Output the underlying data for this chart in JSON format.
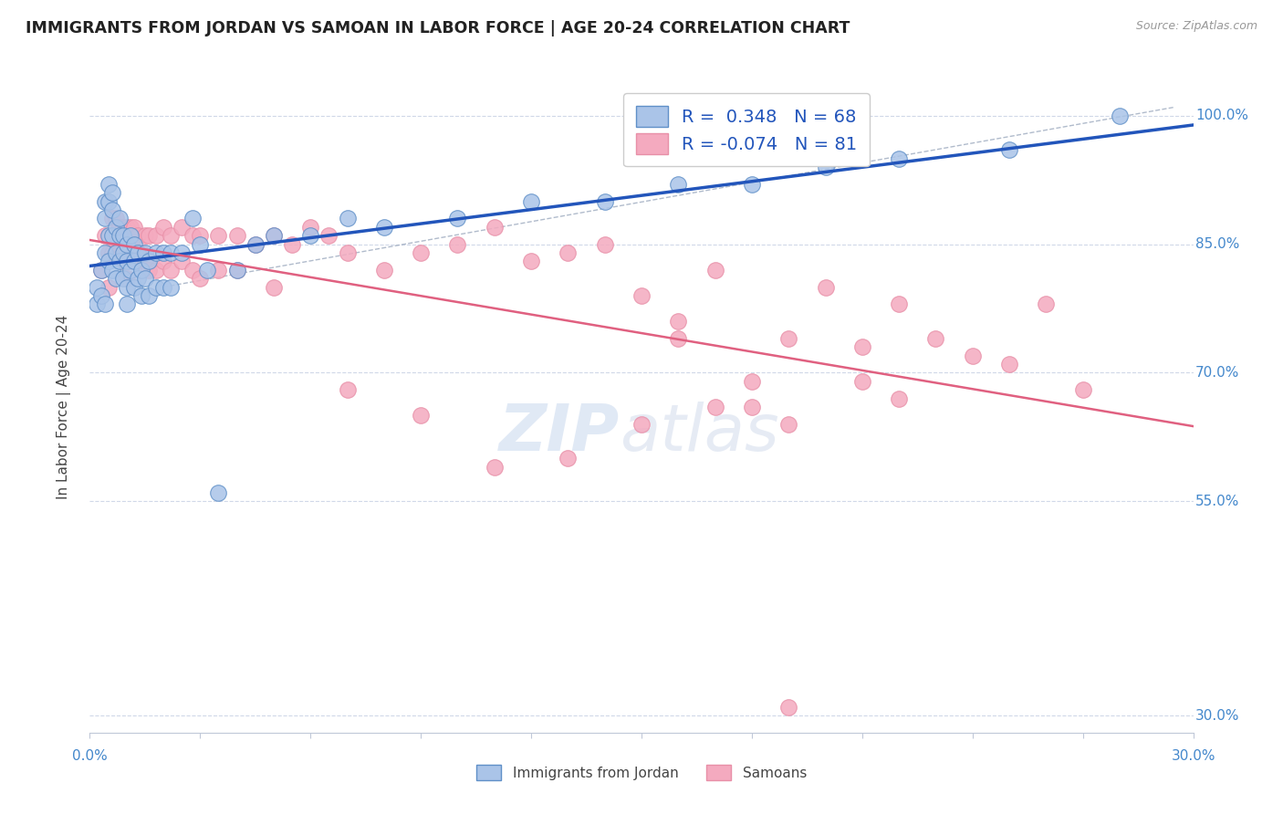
{
  "title": "IMMIGRANTS FROM JORDAN VS SAMOAN IN LABOR FORCE | AGE 20-24 CORRELATION CHART",
  "source": "Source: ZipAtlas.com",
  "ylabel": "In Labor Force | Age 20-24",
  "ytick_values": [
    1.0,
    0.85,
    0.7,
    0.55,
    0.3
  ],
  "xmin": 0.0,
  "xmax": 0.3,
  "ymin": 0.28,
  "ymax": 1.04,
  "r_jordan": 0.348,
  "n_jordan": 68,
  "r_samoan": -0.074,
  "n_samoan": 81,
  "color_jordan": "#aac4e8",
  "color_samoan": "#f4aabf",
  "color_jordan_line": "#2255bb",
  "color_samoan_line": "#e06080",
  "color_dashed": "#9daabf",
  "watermark_zip": "ZIP",
  "watermark_atlas": "atlas",
  "legend_label_jordan": "Immigrants from Jordan",
  "legend_label_samoan": "Samoans",
  "jordan_x": [
    0.002,
    0.002,
    0.003,
    0.003,
    0.004,
    0.004,
    0.004,
    0.004,
    0.005,
    0.005,
    0.005,
    0.005,
    0.006,
    0.006,
    0.006,
    0.006,
    0.007,
    0.007,
    0.007,
    0.008,
    0.008,
    0.008,
    0.009,
    0.009,
    0.009,
    0.01,
    0.01,
    0.01,
    0.01,
    0.011,
    0.011,
    0.012,
    0.012,
    0.012,
    0.013,
    0.013,
    0.014,
    0.014,
    0.015,
    0.015,
    0.016,
    0.016,
    0.018,
    0.018,
    0.02,
    0.02,
    0.022,
    0.022,
    0.025,
    0.028,
    0.03,
    0.032,
    0.035,
    0.04,
    0.045,
    0.05,
    0.06,
    0.07,
    0.08,
    0.1,
    0.12,
    0.14,
    0.16,
    0.18,
    0.2,
    0.22,
    0.25,
    0.28
  ],
  "jordan_y": [
    0.8,
    0.78,
    0.82,
    0.79,
    0.9,
    0.88,
    0.84,
    0.78,
    0.92,
    0.9,
    0.86,
    0.83,
    0.91,
    0.89,
    0.86,
    0.82,
    0.87,
    0.84,
    0.81,
    0.88,
    0.86,
    0.83,
    0.86,
    0.84,
    0.81,
    0.85,
    0.83,
    0.8,
    0.78,
    0.86,
    0.82,
    0.85,
    0.83,
    0.8,
    0.84,
    0.81,
    0.82,
    0.79,
    0.84,
    0.81,
    0.83,
    0.79,
    0.84,
    0.8,
    0.84,
    0.8,
    0.84,
    0.8,
    0.84,
    0.88,
    0.85,
    0.82,
    0.56,
    0.82,
    0.85,
    0.86,
    0.86,
    0.88,
    0.87,
    0.88,
    0.9,
    0.9,
    0.92,
    0.92,
    0.94,
    0.95,
    0.96,
    1.0
  ],
  "samoan_x": [
    0.003,
    0.004,
    0.005,
    0.005,
    0.006,
    0.006,
    0.007,
    0.007,
    0.008,
    0.008,
    0.009,
    0.009,
    0.01,
    0.01,
    0.01,
    0.011,
    0.011,
    0.012,
    0.012,
    0.013,
    0.013,
    0.014,
    0.015,
    0.015,
    0.016,
    0.016,
    0.018,
    0.018,
    0.02,
    0.02,
    0.022,
    0.022,
    0.025,
    0.025,
    0.028,
    0.028,
    0.03,
    0.03,
    0.035,
    0.035,
    0.04,
    0.04,
    0.045,
    0.05,
    0.055,
    0.06,
    0.065,
    0.07,
    0.08,
    0.09,
    0.1,
    0.11,
    0.12,
    0.13,
    0.14,
    0.15,
    0.16,
    0.17,
    0.18,
    0.19,
    0.2,
    0.21,
    0.22,
    0.23,
    0.24,
    0.25,
    0.26,
    0.27,
    0.18,
    0.19,
    0.21,
    0.22,
    0.16,
    0.17,
    0.15,
    0.13,
    0.11,
    0.09,
    0.07,
    0.05,
    0.19
  ],
  "samoan_y": [
    0.82,
    0.86,
    0.84,
    0.8,
    0.88,
    0.84,
    0.88,
    0.84,
    0.87,
    0.84,
    0.87,
    0.83,
    0.87,
    0.84,
    0.81,
    0.87,
    0.83,
    0.87,
    0.84,
    0.86,
    0.83,
    0.84,
    0.86,
    0.83,
    0.86,
    0.82,
    0.86,
    0.82,
    0.87,
    0.83,
    0.86,
    0.82,
    0.87,
    0.83,
    0.86,
    0.82,
    0.86,
    0.81,
    0.86,
    0.82,
    0.86,
    0.82,
    0.85,
    0.86,
    0.85,
    0.87,
    0.86,
    0.84,
    0.82,
    0.84,
    0.85,
    0.87,
    0.83,
    0.84,
    0.85,
    0.79,
    0.76,
    0.82,
    0.69,
    0.74,
    0.8,
    0.73,
    0.78,
    0.74,
    0.72,
    0.71,
    0.78,
    0.68,
    0.66,
    0.64,
    0.69,
    0.67,
    0.74,
    0.66,
    0.64,
    0.6,
    0.59,
    0.65,
    0.68,
    0.8,
    0.31
  ]
}
